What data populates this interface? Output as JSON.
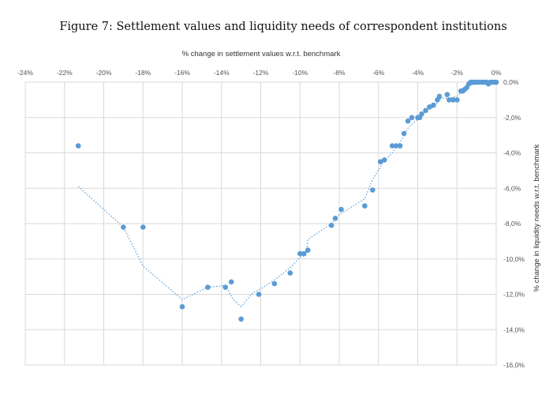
{
  "title": "Figure 7: Settlement values and liquidity needs of correspondent institutions",
  "chart_data": {
    "type": "scatter",
    "xlabel": "% change in settlement values w.r.t. benchmark",
    "ylabel": "% change in liquidity needs w.r.t. benchmark",
    "xlim": [
      -24,
      0
    ],
    "ylim": [
      -16,
      0
    ],
    "x_ticks": [
      "-24%",
      "-22%",
      "-20%",
      "-18%",
      "-16%",
      "-14%",
      "-12%",
      "-10%",
      "-8%",
      "-6%",
      "-4%",
      "-2%",
      "0%"
    ],
    "y_ticks": [
      "0,0%",
      "-2,0%",
      "-4,0%",
      "-6,0%",
      "-8,0%",
      "-10,0%",
      "-12,0%",
      "-14,0%",
      "-16,0%"
    ],
    "x_axis_position": "top",
    "y_axis_position": "right",
    "grid": true,
    "colors": {
      "points": "#5b9bd5",
      "trendline": "#5b9bd5",
      "grid": "#d9d9d9"
    },
    "points": [
      [
        -21.3,
        -3.6
      ],
      [
        -19.0,
        -8.2
      ],
      [
        -18.0,
        -8.2
      ],
      [
        -16.0,
        -12.7
      ],
      [
        -14.7,
        -11.6
      ],
      [
        -13.8,
        -11.6
      ],
      [
        -13.5,
        -11.3
      ],
      [
        -13.0,
        -13.4
      ],
      [
        -12.1,
        -12.0
      ],
      [
        -11.3,
        -11.4
      ],
      [
        -10.5,
        -10.8
      ],
      [
        -10.0,
        -9.7
      ],
      [
        -9.8,
        -9.7
      ],
      [
        -9.6,
        -9.5
      ],
      [
        -8.4,
        -8.1
      ],
      [
        -8.2,
        -7.7
      ],
      [
        -7.9,
        -7.2
      ],
      [
        -6.7,
        -7.0
      ],
      [
        -6.3,
        -6.1
      ],
      [
        -5.9,
        -4.5
      ],
      [
        -5.7,
        -4.4
      ],
      [
        -5.3,
        -3.6
      ],
      [
        -5.1,
        -3.6
      ],
      [
        -4.9,
        -3.6
      ],
      [
        -4.7,
        -2.9
      ],
      [
        -4.5,
        -2.2
      ],
      [
        -4.3,
        -2.0
      ],
      [
        -4.0,
        -2.0
      ],
      [
        -3.9,
        -2.0
      ],
      [
        -3.8,
        -1.8
      ],
      [
        -3.6,
        -1.6
      ],
      [
        -3.4,
        -1.4
      ],
      [
        -3.2,
        -1.3
      ],
      [
        -3.0,
        -1.0
      ],
      [
        -2.9,
        -0.8
      ],
      [
        -2.5,
        -0.7
      ],
      [
        -2.4,
        -1.0
      ],
      [
        -2.2,
        -1.0
      ],
      [
        -2.0,
        -1.0
      ],
      [
        -1.8,
        -0.5
      ],
      [
        -1.7,
        -0.5
      ],
      [
        -1.6,
        -0.4
      ],
      [
        -1.5,
        -0.3
      ],
      [
        -1.4,
        -0.1
      ],
      [
        -1.3,
        0.0
      ],
      [
        -1.2,
        0.0
      ],
      [
        -1.1,
        0.0
      ],
      [
        -1.0,
        0.0
      ],
      [
        -0.9,
        0.0
      ],
      [
        -0.8,
        0.0
      ],
      [
        -0.7,
        0.0
      ],
      [
        -0.6,
        0.0
      ],
      [
        -0.5,
        0.0
      ],
      [
        -0.4,
        -0.1
      ],
      [
        -0.3,
        0.0
      ],
      [
        -0.2,
        0.0
      ],
      [
        -0.1,
        0.0
      ],
      [
        0.0,
        0.0
      ]
    ],
    "trendline": {
      "style": "dotted moving average",
      "points": [
        [
          -21.3,
          -5.9
        ],
        [
          -19.0,
          -8.2
        ],
        [
          -18.0,
          -10.4
        ],
        [
          -16.0,
          -12.3
        ],
        [
          -14.7,
          -11.6
        ],
        [
          -13.8,
          -11.5
        ],
        [
          -13.4,
          -12.3
        ],
        [
          -13.0,
          -12.7
        ],
        [
          -12.4,
          -11.9
        ],
        [
          -12.0,
          -11.7
        ],
        [
          -11.2,
          -11.1
        ],
        [
          -10.5,
          -10.5
        ],
        [
          -10.0,
          -9.9
        ],
        [
          -9.7,
          -9.8
        ],
        [
          -9.6,
          -8.9
        ],
        [
          -8.4,
          -8.0
        ],
        [
          -8.0,
          -7.5
        ],
        [
          -7.0,
          -6.8
        ],
        [
          -6.7,
          -6.6
        ],
        [
          -6.3,
          -5.5
        ],
        [
          -5.8,
          -4.6
        ],
        [
          -5.3,
          -4.0
        ],
        [
          -4.9,
          -3.4
        ],
        [
          -4.5,
          -2.6
        ],
        [
          -4.0,
          -2.1
        ],
        [
          -3.6,
          -1.7
        ],
        [
          -3.2,
          -1.4
        ],
        [
          -2.8,
          -0.9
        ],
        [
          -2.4,
          -0.9
        ],
        [
          -2.0,
          -0.8
        ],
        [
          -1.7,
          -0.5
        ],
        [
          -1.4,
          -0.2
        ],
        [
          -1.0,
          -0.1
        ],
        [
          0.0,
          -0.1
        ]
      ]
    }
  }
}
